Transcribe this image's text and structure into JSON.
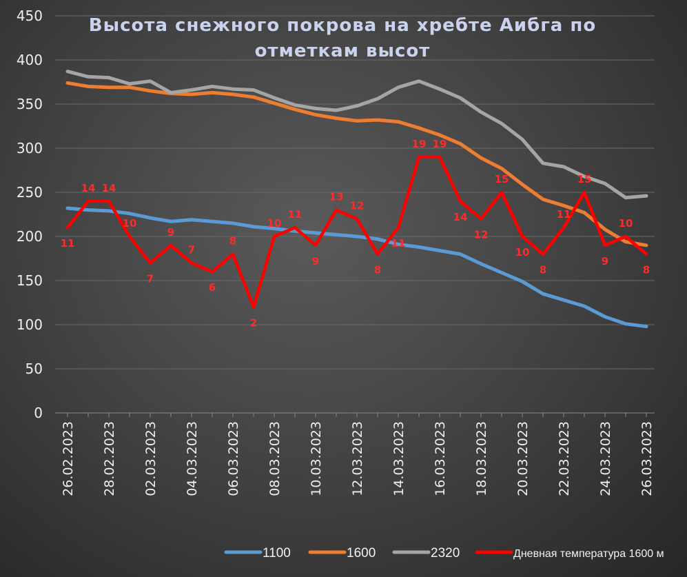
{
  "chart_data": {
    "type": "line",
    "title_lines": [
      "Высота снежного покрова на хребте Аибга по",
      "отметкам высот"
    ],
    "ylim": [
      0,
      450
    ],
    "yticks": [
      0,
      50,
      100,
      150,
      200,
      250,
      300,
      350,
      400,
      450
    ],
    "x": [
      "26.02.2023",
      "27.02.2023",
      "28.02.2023",
      "01.03.2023",
      "02.03.2023",
      "03.03.2023",
      "04.03.2023",
      "05.03.2023",
      "06.03.2023",
      "07.03.2023",
      "08.03.2023",
      "09.03.2023",
      "10.03.2023",
      "11.03.2023",
      "12.03.2023",
      "13.03.2023",
      "14.03.2023",
      "15.03.2023",
      "16.03.2023",
      "17.03.2023",
      "18.03.2023",
      "19.03.2023",
      "20.03.2023",
      "21.03.2023",
      "22.03.2023",
      "23.03.2023",
      "24.03.2023",
      "25.03.2023",
      "26.03.2023"
    ],
    "xtick_labels": [
      "26.02.2023",
      "28.02.2023",
      "02.03.2023",
      "04.03.2023",
      "06.03.2023",
      "08.03.2023",
      "10.03.2023",
      "12.03.2023",
      "14.03.2023",
      "16.03.2023",
      "18.03.2023",
      "20.03.2023",
      "22.03.2023",
      "24.03.2023",
      "26.03.2023"
    ],
    "grid": true,
    "legend_position": "bottom",
    "series": [
      {
        "name": "1100",
        "color": "#5b9bd5",
        "values": [
          232,
          230,
          229,
          226,
          221,
          217,
          219,
          217,
          215,
          211,
          209,
          206,
          204,
          202,
          200,
          197,
          191,
          188,
          184,
          180,
          169,
          159,
          149,
          135,
          128,
          121,
          109,
          101,
          98
        ]
      },
      {
        "name": "1600",
        "color": "#ed7d31",
        "values": [
          374,
          370,
          369,
          369,
          365,
          362,
          361,
          363,
          361,
          358,
          351,
          344,
          338,
          334,
          331,
          332,
          330,
          323,
          315,
          305,
          289,
          277,
          259,
          242,
          235,
          227,
          208,
          194,
          190
        ]
      },
      {
        "name": "2320",
        "color": "#a5a5a5",
        "values": [
          387,
          381,
          380,
          373,
          376,
          363,
          366,
          370,
          367,
          366,
          357,
          349,
          345,
          343,
          348,
          356,
          369,
          376,
          367,
          357,
          341,
          328,
          310,
          283,
          279,
          268,
          260,
          244,
          246
        ]
      },
      {
        "name": "Дневная температура 1600 м",
        "color": "#ff0000",
        "temperatures": [
          11,
          14,
          14,
          10,
          7,
          9,
          7,
          6,
          8,
          2,
          10,
          11,
          9,
          13,
          12,
          8,
          11,
          19,
          19,
          14,
          12,
          15,
          10,
          8,
          11,
          15,
          9,
          10,
          8
        ]
      }
    ],
    "temperature_label_positions": [
      "below",
      "above",
      "above",
      "above",
      "below",
      "above",
      "above",
      "below",
      "above",
      "below",
      "above",
      "above",
      "below",
      "above",
      "above",
      "below",
      "below",
      "above",
      "above",
      "below",
      "below",
      "above",
      "below",
      "below",
      "above",
      "above",
      "below",
      "above",
      "below"
    ]
  }
}
